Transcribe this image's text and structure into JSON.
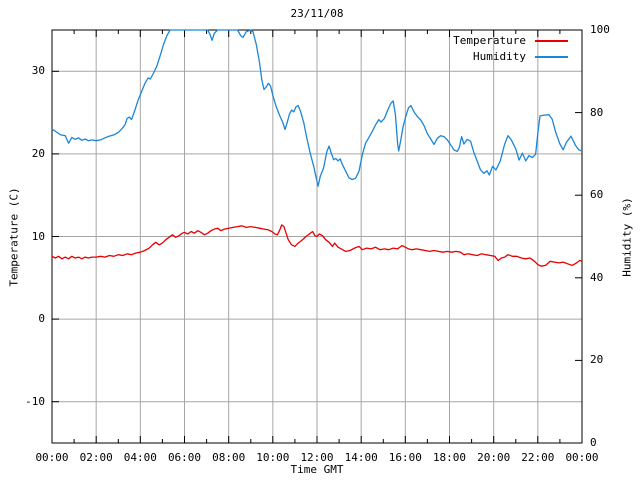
{
  "title": "23/11/08",
  "colors": {
    "temperature": "#e60000",
    "humidity": "#1c86d6",
    "grid": "#a6a6a6",
    "frame": "#000000",
    "background": "#ffffff",
    "text": "#000000"
  },
  "chart_data": {
    "type": "line",
    "title": "23/11/08",
    "xlabel": "Time GMT",
    "ylabel_left": "Temperature (C)",
    "ylabel_right": "Humidity (%)",
    "grid": true,
    "legend_position": "top-right-inside",
    "x_axis": {
      "min": 0,
      "max": 24,
      "major_tick_hours": 2,
      "minor_tick_hours": 1,
      "tick_labels": [
        "00:00",
        "02:00",
        "04:00",
        "06:00",
        "08:00",
        "10:00",
        "12:00",
        "14:00",
        "16:00",
        "18:00",
        "20:00",
        "22:00",
        "00:00"
      ]
    },
    "y_axis_left": {
      "min": -15,
      "max": 35,
      "ticks": [
        30,
        20,
        10,
        0,
        -10
      ]
    },
    "y_axis_right": {
      "min": 0,
      "max": 100,
      "ticks": [
        100,
        80,
        60,
        40,
        20,
        0
      ]
    },
    "series": [
      {
        "name": "Temperature",
        "axis": "left",
        "color": "#e60000",
        "points": [
          [
            0,
            7.6
          ],
          [
            0.15,
            7.4
          ],
          [
            0.3,
            7.6
          ],
          [
            0.45,
            7.3
          ],
          [
            0.6,
            7.5
          ],
          [
            0.75,
            7.3
          ],
          [
            0.9,
            7.6
          ],
          [
            1.05,
            7.4
          ],
          [
            1.2,
            7.5
          ],
          [
            1.35,
            7.3
          ],
          [
            1.5,
            7.5
          ],
          [
            1.65,
            7.4
          ],
          [
            1.8,
            7.5
          ],
          [
            2,
            7.5
          ],
          [
            2.2,
            7.6
          ],
          [
            2.4,
            7.5
          ],
          [
            2.6,
            7.7
          ],
          [
            2.8,
            7.6
          ],
          [
            3,
            7.8
          ],
          [
            3.2,
            7.7
          ],
          [
            3.4,
            7.9
          ],
          [
            3.6,
            7.8
          ],
          [
            3.8,
            8
          ],
          [
            4,
            8.1
          ],
          [
            4.2,
            8.3
          ],
          [
            4.4,
            8.6
          ],
          [
            4.55,
            9
          ],
          [
            4.7,
            9.3
          ],
          [
            4.85,
            9
          ],
          [
            5,
            9.2
          ],
          [
            5.15,
            9.6
          ],
          [
            5.3,
            9.9
          ],
          [
            5.45,
            10.2
          ],
          [
            5.6,
            9.9
          ],
          [
            5.75,
            10.1
          ],
          [
            5.9,
            10.4
          ],
          [
            6,
            10.5
          ],
          [
            6.15,
            10.3
          ],
          [
            6.3,
            10.6
          ],
          [
            6.45,
            10.4
          ],
          [
            6.6,
            10.7
          ],
          [
            6.75,
            10.5
          ],
          [
            6.9,
            10.2
          ],
          [
            7.05,
            10.4
          ],
          [
            7.2,
            10.7
          ],
          [
            7.35,
            10.9
          ],
          [
            7.5,
            11
          ],
          [
            7.65,
            10.7
          ],
          [
            7.8,
            10.9
          ],
          [
            8,
            11
          ],
          [
            8.2,
            11.1
          ],
          [
            8.4,
            11.2
          ],
          [
            8.6,
            11.3
          ],
          [
            8.8,
            11.1
          ],
          [
            9,
            11.2
          ],
          [
            9.2,
            11.1
          ],
          [
            9.4,
            11
          ],
          [
            9.6,
            10.9
          ],
          [
            9.8,
            10.8
          ],
          [
            9.95,
            10.6
          ],
          [
            10.1,
            10.3
          ],
          [
            10.2,
            10.2
          ],
          [
            10.3,
            10.7
          ],
          [
            10.4,
            11.4
          ],
          [
            10.5,
            11.2
          ],
          [
            10.6,
            10.4
          ],
          [
            10.7,
            9.6
          ],
          [
            10.85,
            9
          ],
          [
            11,
            8.8
          ],
          [
            11.15,
            9.2
          ],
          [
            11.3,
            9.5
          ],
          [
            11.5,
            10
          ],
          [
            11.65,
            10.3
          ],
          [
            11.8,
            10.6
          ],
          [
            11.9,
            10.1
          ],
          [
            12,
            10
          ],
          [
            12.1,
            10.3
          ],
          [
            12.25,
            10.1
          ],
          [
            12.4,
            9.6
          ],
          [
            12.55,
            9.3
          ],
          [
            12.7,
            8.8
          ],
          [
            12.8,
            9.2
          ],
          [
            12.95,
            8.7
          ],
          [
            13.1,
            8.5
          ],
          [
            13.3,
            8.2
          ],
          [
            13.5,
            8.3
          ],
          [
            13.7,
            8.6
          ],
          [
            13.9,
            8.8
          ],
          [
            14.05,
            8.4
          ],
          [
            14.25,
            8.6
          ],
          [
            14.45,
            8.5
          ],
          [
            14.65,
            8.7
          ],
          [
            14.85,
            8.4
          ],
          [
            15.05,
            8.5
          ],
          [
            15.25,
            8.4
          ],
          [
            15.45,
            8.6
          ],
          [
            15.65,
            8.5
          ],
          [
            15.85,
            8.9
          ],
          [
            16,
            8.7
          ],
          [
            16.15,
            8.5
          ],
          [
            16.3,
            8.4
          ],
          [
            16.5,
            8.5
          ],
          [
            16.7,
            8.4
          ],
          [
            16.9,
            8.3
          ],
          [
            17.1,
            8.2
          ],
          [
            17.3,
            8.3
          ],
          [
            17.5,
            8.2
          ],
          [
            17.7,
            8.1
          ],
          [
            17.9,
            8.2
          ],
          [
            18.1,
            8.1
          ],
          [
            18.3,
            8.2
          ],
          [
            18.5,
            8.1
          ],
          [
            18.65,
            7.8
          ],
          [
            18.85,
            7.9
          ],
          [
            19.05,
            7.8
          ],
          [
            19.25,
            7.7
          ],
          [
            19.45,
            7.9
          ],
          [
            19.65,
            7.8
          ],
          [
            19.85,
            7.7
          ],
          [
            20.05,
            7.6
          ],
          [
            20.2,
            7.1
          ],
          [
            20.35,
            7.4
          ],
          [
            20.5,
            7.5
          ],
          [
            20.65,
            7.8
          ],
          [
            20.85,
            7.6
          ],
          [
            21.05,
            7.6
          ],
          [
            21.25,
            7.4
          ],
          [
            21.45,
            7.3
          ],
          [
            21.65,
            7.4
          ],
          [
            21.85,
            7
          ],
          [
            22,
            6.6
          ],
          [
            22.15,
            6.4
          ],
          [
            22.35,
            6.5
          ],
          [
            22.55,
            7
          ],
          [
            22.75,
            6.9
          ],
          [
            22.95,
            6.8
          ],
          [
            23.15,
            6.9
          ],
          [
            23.35,
            6.7
          ],
          [
            23.55,
            6.5
          ],
          [
            23.75,
            6.8
          ],
          [
            23.9,
            7.1
          ],
          [
            24,
            7
          ]
        ]
      },
      {
        "name": "Humidity",
        "axis": "right",
        "color": "#1c86d6",
        "points": [
          [
            0,
            76
          ],
          [
            0.2,
            75.3
          ],
          [
            0.4,
            74.6
          ],
          [
            0.6,
            74.4
          ],
          [
            0.75,
            72.6
          ],
          [
            0.9,
            74
          ],
          [
            1.05,
            73.5
          ],
          [
            1.2,
            73.9
          ],
          [
            1.35,
            73.3
          ],
          [
            1.5,
            73.6
          ],
          [
            1.65,
            73.2
          ],
          [
            1.8,
            73.4
          ],
          [
            2,
            73.2
          ],
          [
            2.2,
            73.4
          ],
          [
            2.4,
            73.9
          ],
          [
            2.6,
            74.3
          ],
          [
            2.8,
            74.6
          ],
          [
            3,
            75.2
          ],
          [
            3.15,
            76
          ],
          [
            3.3,
            77
          ],
          [
            3.4,
            78.6
          ],
          [
            3.5,
            78.9
          ],
          [
            3.6,
            78.3
          ],
          [
            3.75,
            80.5
          ],
          [
            3.9,
            83
          ],
          [
            4.05,
            85
          ],
          [
            4.2,
            87
          ],
          [
            4.35,
            88.4
          ],
          [
            4.45,
            88.1
          ],
          [
            4.6,
            89.6
          ],
          [
            4.75,
            91.3
          ],
          [
            4.9,
            93.8
          ],
          [
            5.05,
            96.5
          ],
          [
            5.2,
            98.6
          ],
          [
            5.35,
            100
          ],
          [
            5.6,
            100
          ],
          [
            5.9,
            100
          ],
          [
            6.2,
            100
          ],
          [
            6.5,
            100
          ],
          [
            6.8,
            100
          ],
          [
            7.05,
            100
          ],
          [
            7.15,
            99
          ],
          [
            7.25,
            97.5
          ],
          [
            7.35,
            99.2
          ],
          [
            7.5,
            100
          ],
          [
            7.8,
            100
          ],
          [
            8.1,
            100
          ],
          [
            8.4,
            100
          ],
          [
            8.55,
            98.6
          ],
          [
            8.65,
            98.2
          ],
          [
            8.8,
            99.6
          ],
          [
            9,
            100
          ],
          [
            9.1,
            99.6
          ],
          [
            9.25,
            96.5
          ],
          [
            9.4,
            92
          ],
          [
            9.5,
            88
          ],
          [
            9.6,
            85.6
          ],
          [
            9.7,
            86.2
          ],
          [
            9.8,
            87.1
          ],
          [
            9.9,
            86.4
          ],
          [
            10,
            84.2
          ],
          [
            10.15,
            81.5
          ],
          [
            10.3,
            79.4
          ],
          [
            10.45,
            77.6
          ],
          [
            10.55,
            75.9
          ],
          [
            10.65,
            77.6
          ],
          [
            10.75,
            79.6
          ],
          [
            10.85,
            80.6
          ],
          [
            10.95,
            80.2
          ],
          [
            11.05,
            81.4
          ],
          [
            11.15,
            81.7
          ],
          [
            11.25,
            80.4
          ],
          [
            11.4,
            77.5
          ],
          [
            11.55,
            73.5
          ],
          [
            11.7,
            70
          ],
          [
            11.85,
            67
          ],
          [
            11.95,
            64.5
          ],
          [
            12.05,
            62.2
          ],
          [
            12.15,
            64.6
          ],
          [
            12.3,
            66.6
          ],
          [
            12.45,
            70.6
          ],
          [
            12.55,
            71.9
          ],
          [
            12.65,
            70.1
          ],
          [
            12.75,
            68.6
          ],
          [
            12.85,
            68.9
          ],
          [
            12.95,
            68.3
          ],
          [
            13.05,
            68.8
          ],
          [
            13.15,
            67.4
          ],
          [
            13.3,
            65.8
          ],
          [
            13.45,
            64.2
          ],
          [
            13.6,
            63.8
          ],
          [
            13.75,
            64.1
          ],
          [
            13.9,
            65.8
          ],
          [
            14.05,
            69.8
          ],
          [
            14.2,
            72.6
          ],
          [
            14.35,
            74
          ],
          [
            14.5,
            75.4
          ],
          [
            14.65,
            77
          ],
          [
            14.8,
            78.3
          ],
          [
            14.9,
            77.7
          ],
          [
            15.05,
            78.6
          ],
          [
            15.2,
            80.6
          ],
          [
            15.35,
            82.3
          ],
          [
            15.45,
            82.8
          ],
          [
            15.55,
            79.5
          ],
          [
            15.65,
            72.5
          ],
          [
            15.7,
            70.7
          ],
          [
            15.8,
            73.5
          ],
          [
            15.9,
            76.6
          ],
          [
            16.05,
            79.6
          ],
          [
            16.15,
            81.2
          ],
          [
            16.25,
            81.7
          ],
          [
            16.4,
            80.1
          ],
          [
            16.55,
            79
          ],
          [
            16.7,
            78.2
          ],
          [
            16.85,
            76.8
          ],
          [
            17,
            74.9
          ],
          [
            17.15,
            73.6
          ],
          [
            17.3,
            72.3
          ],
          [
            17.45,
            73.8
          ],
          [
            17.6,
            74.4
          ],
          [
            17.75,
            74.2
          ],
          [
            17.9,
            73.4
          ],
          [
            18.05,
            72.2
          ],
          [
            18.2,
            71
          ],
          [
            18.35,
            70.6
          ],
          [
            18.45,
            71.6
          ],
          [
            18.55,
            74.2
          ],
          [
            18.65,
            72.4
          ],
          [
            18.8,
            73.5
          ],
          [
            18.95,
            73.1
          ],
          [
            19.1,
            70.4
          ],
          [
            19.25,
            68.3
          ],
          [
            19.4,
            66.2
          ],
          [
            19.55,
            65.3
          ],
          [
            19.7,
            65.9
          ],
          [
            19.8,
            64.9
          ],
          [
            19.95,
            67
          ],
          [
            20.1,
            66.1
          ],
          [
            20.3,
            68.3
          ],
          [
            20.5,
            72.4
          ],
          [
            20.65,
            74.4
          ],
          [
            20.8,
            73.4
          ],
          [
            21,
            71.2
          ],
          [
            21.15,
            68.5
          ],
          [
            21.3,
            70.2
          ],
          [
            21.45,
            68.3
          ],
          [
            21.6,
            69.6
          ],
          [
            21.75,
            69.1
          ],
          [
            21.9,
            69.9
          ],
          [
            22,
            75
          ],
          [
            22.1,
            79.2
          ],
          [
            22.3,
            79.4
          ],
          [
            22.5,
            79.5
          ],
          [
            22.65,
            78.4
          ],
          [
            22.8,
            75.4
          ],
          [
            23,
            72.4
          ],
          [
            23.15,
            71
          ],
          [
            23.3,
            72.8
          ],
          [
            23.5,
            74.3
          ],
          [
            23.7,
            72.1
          ],
          [
            23.85,
            71
          ],
          [
            24,
            70.7
          ]
        ]
      }
    ]
  }
}
